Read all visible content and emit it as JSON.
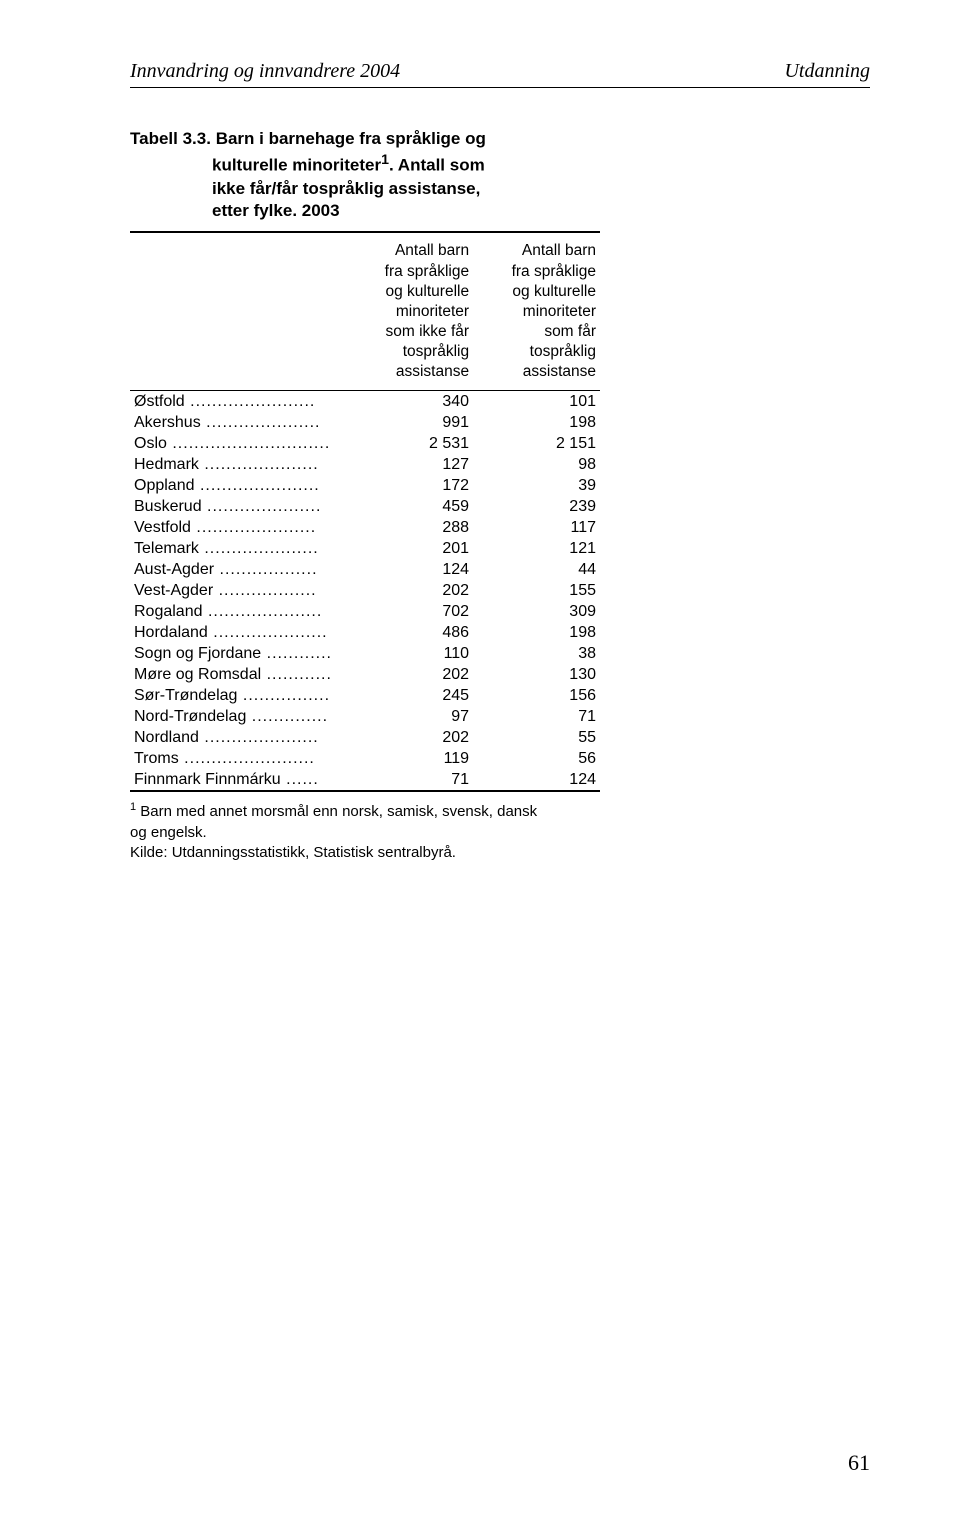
{
  "header": {
    "left": "Innvandring og innvandrere 2004",
    "right": "Utdanning"
  },
  "table": {
    "title_prefix": "Tabell 3.3.",
    "title_line1": "Barn i barnehage fra språklige og",
    "title_line2": "kulturelle minoriteter",
    "title_sup": "1",
    "title_line2b": ". Antall som",
    "title_line3": "ikke får/får tospråklig assistanse,",
    "title_line4": "etter fylke. 2003",
    "col1": [
      "Antall barn",
      "fra språklige",
      "og kulturelle",
      "minoriteter",
      "som ikke får",
      "tospråklig",
      "assistanse"
    ],
    "col2": [
      "Antall barn",
      "fra språklige",
      "og kulturelle",
      "minoriteter",
      "som får",
      "tospråklig",
      "assistanse"
    ],
    "rows": [
      {
        "label": "Østfold",
        "v1": "340",
        "v2": "101"
      },
      {
        "label": "Akershus",
        "v1": "991",
        "v2": "198"
      },
      {
        "label": "Oslo",
        "v1": "2 531",
        "v2": "2 151"
      },
      {
        "label": "Hedmark",
        "v1": "127",
        "v2": "98"
      },
      {
        "label": "Oppland",
        "v1": "172",
        "v2": "39"
      },
      {
        "label": "Buskerud",
        "v1": "459",
        "v2": "239"
      },
      {
        "label": "Vestfold",
        "v1": "288",
        "v2": "117"
      },
      {
        "label": "Telemark",
        "v1": "201",
        "v2": "121"
      },
      {
        "label": "Aust-Agder",
        "v1": "124",
        "v2": "44"
      },
      {
        "label": "Vest-Agder",
        "v1": "202",
        "v2": "155"
      },
      {
        "label": "Rogaland",
        "v1": "702",
        "v2": "309"
      },
      {
        "label": "Hordaland",
        "v1": "486",
        "v2": "198"
      },
      {
        "label": "Sogn og Fjordane",
        "v1": "110",
        "v2": "38"
      },
      {
        "label": "Møre og Romsdal",
        "v1": "202",
        "v2": "130"
      },
      {
        "label": "Sør-Trøndelag",
        "v1": "245",
        "v2": "156"
      },
      {
        "label": "Nord-Trøndelag",
        "v1": "97",
        "v2": "71"
      },
      {
        "label": "Nordland",
        "v1": "202",
        "v2": "55"
      },
      {
        "label": "Troms",
        "v1": "119",
        "v2": "56"
      },
      {
        "label": "Finnmark Finnmárku",
        "v1": "71",
        "v2": "124"
      }
    ]
  },
  "footnote": {
    "sup": "1",
    "line1": "Barn med annet morsmål enn norsk, samisk, svensk, dansk",
    "line2": "og engelsk.",
    "source": "Kilde: Utdanningsstatistikk, Statistisk sentralbyrå."
  },
  "page_number": "61",
  "dots": {
    "s6": " ......",
    "s12": " ............",
    "s14": " ..............",
    "s16": " ................",
    "s18": " ..................",
    "s21": " .....................",
    "s22": " ......................",
    "s23": " .......................",
    "s24": " ........................",
    "s29": " ............................."
  }
}
